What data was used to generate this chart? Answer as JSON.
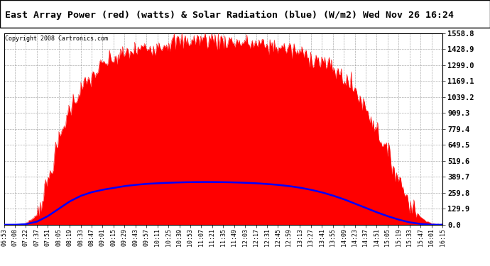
{
  "title": "East Array Power (red) (watts) & Solar Radiation (blue) (W/m2) Wed Nov 26 16:24",
  "copyright": "Copyright 2008 Cartronics.com",
  "background_color": "#ffffff",
  "y_max": 1558.8,
  "y_min": 0.0,
  "y_ticks": [
    0.0,
    129.9,
    259.8,
    389.7,
    519.6,
    649.5,
    779.4,
    909.3,
    1039.2,
    1169.1,
    1299.0,
    1428.9,
    1558.8
  ],
  "time_labels": [
    "06:53",
    "07:08",
    "07:22",
    "07:37",
    "07:51",
    "08:05",
    "08:19",
    "08:33",
    "08:47",
    "09:01",
    "09:15",
    "09:29",
    "09:43",
    "09:57",
    "10:11",
    "10:25",
    "10:39",
    "10:53",
    "11:07",
    "11:21",
    "11:35",
    "11:49",
    "12:03",
    "12:17",
    "12:31",
    "12:45",
    "12:59",
    "13:13",
    "13:27",
    "13:41",
    "13:55",
    "14:09",
    "14:23",
    "14:37",
    "14:51",
    "15:05",
    "15:19",
    "15:33",
    "15:47",
    "16:01",
    "16:15"
  ],
  "red_fill_color": "#ff0000",
  "blue_line_color": "#0000ff",
  "grid_color": "#aaaaaa",
  "title_color": "#000000",
  "title_border_color": "#000000"
}
